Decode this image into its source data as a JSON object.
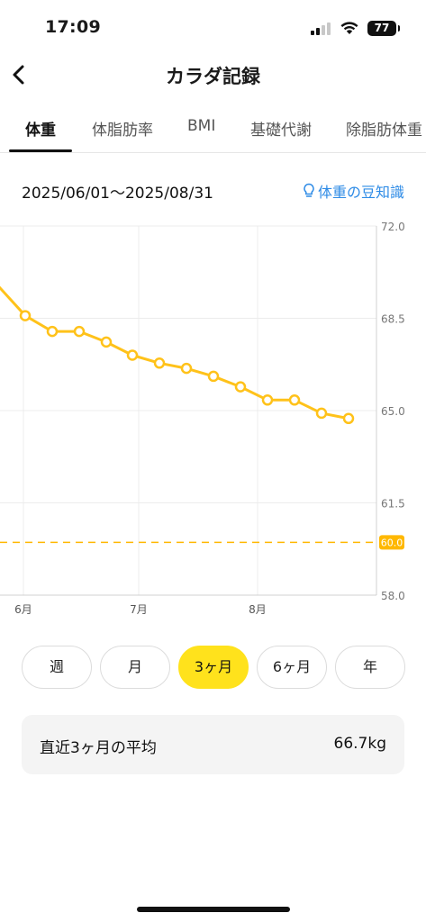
{
  "status_bar": {
    "time": "17:09",
    "battery": "77"
  },
  "nav": {
    "title": "カラダ記録",
    "back_icon": "chevron-left-icon"
  },
  "tabs": [
    {
      "label": "体重",
      "active": true
    },
    {
      "label": "体脂肪率",
      "active": false
    },
    {
      "label": "BMI",
      "active": false
    },
    {
      "label": "基礎代謝",
      "active": false
    },
    {
      "label": "除脂肪体重",
      "active": false
    }
  ],
  "date_range": "2025/06/01〜2025/08/31",
  "tip_link": {
    "label": "体重の豆知識",
    "icon": "lightbulb-icon",
    "color": "#2e8be6"
  },
  "chart_data": {
    "type": "line",
    "y_axis": {
      "min": 58.0,
      "max": 72.0,
      "position": "right",
      "ticks": [
        "72.0",
        "68.5",
        "65.0",
        "61.5",
        "58.0"
      ]
    },
    "x_ticks": [
      "6月",
      "7月",
      "8月"
    ],
    "series": [
      {
        "values": [
          69.8,
          68.6,
          68.0,
          68.0,
          67.6,
          67.1,
          66.8,
          66.6,
          66.3,
          65.9,
          65.4,
          65.4,
          64.9,
          64.7
        ],
        "color": "#ffc21a"
      }
    ],
    "target": {
      "value": 60.0,
      "label": "60.0",
      "color": "#ffb800"
    },
    "grid": true
  },
  "periods": [
    {
      "label": "週",
      "active": false
    },
    {
      "label": "月",
      "active": false
    },
    {
      "label": "3ヶ月",
      "active": true
    },
    {
      "label": "6ヶ月",
      "active": false
    },
    {
      "label": "年",
      "active": false
    }
  ],
  "average": {
    "label": "直近3ヶ月の平均",
    "value": "66.7kg"
  }
}
